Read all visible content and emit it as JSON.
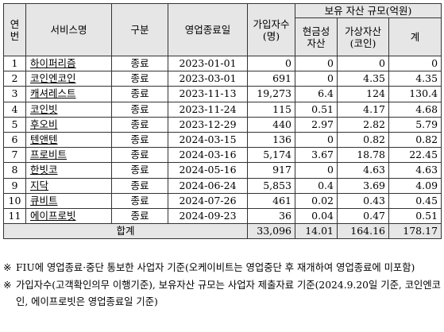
{
  "table": {
    "headers": {
      "no": "연\n번",
      "service": "서비스명",
      "type": "구분",
      "end_date": "영업종료일",
      "members": "가입자수\n(명)",
      "assets_group": "보유 자산 규모(억원)",
      "cash": "현금성\n자산",
      "coin": "가상자산\n(코인)",
      "sum": "계"
    },
    "rows": [
      {
        "no": "1",
        "service": "하이퍼리즘",
        "type": "종료",
        "date": "2023-01-01",
        "members": "0",
        "cash": "0",
        "coin": "0",
        "sum": "0"
      },
      {
        "no": "2",
        "service": "코인엔코인",
        "type": "종료",
        "date": "2023-03-01",
        "members": "691",
        "cash": "0",
        "coin": "4.35",
        "sum": "4.35"
      },
      {
        "no": "3",
        "service": "캐셔레스트",
        "type": "종료",
        "date": "2023-11-13",
        "members": "19,273",
        "cash": "6.4",
        "coin": "124",
        "sum": "130.4"
      },
      {
        "no": "4",
        "service": "코인빗",
        "type": "종료",
        "date": "2023-11-24",
        "members": "115",
        "cash": "0.51",
        "coin": "4.17",
        "sum": "4.68"
      },
      {
        "no": "5",
        "service": "후오비",
        "type": "종료",
        "date": "2023-12-29",
        "members": "440",
        "cash": "2.97",
        "coin": "2.82",
        "sum": "5.79"
      },
      {
        "no": "6",
        "service": "텐앤텐",
        "type": "종료",
        "date": "2024-03-15",
        "members": "136",
        "cash": "0",
        "coin": "0.82",
        "sum": "0.82"
      },
      {
        "no": "7",
        "service": "프로비트",
        "type": "종료",
        "date": "2024-03-16",
        "members": "5,174",
        "cash": "3.67",
        "coin": "18.78",
        "sum": "22.45"
      },
      {
        "no": "8",
        "service": "한빗코",
        "type": "종료",
        "date": "2024-05-16",
        "members": "917",
        "cash": "0",
        "coin": "4.63",
        "sum": "4.63"
      },
      {
        "no": "9",
        "service": "지닥",
        "type": "종료",
        "date": "2024-06-24",
        "members": "5,853",
        "cash": "0.4",
        "coin": "3.69",
        "sum": "4.09"
      },
      {
        "no": "10",
        "service": "큐비트",
        "type": "종료",
        "date": "2024-07-26",
        "members": "461",
        "cash": "0.02",
        "coin": "0.43",
        "sum": "0.45"
      },
      {
        "no": "11",
        "service": "에이프로빗",
        "type": "종료",
        "date": "2024-09-23",
        "members": "36",
        "cash": "0.04",
        "coin": "0.47",
        "sum": "0.51"
      }
    ],
    "total": {
      "label": "합계",
      "members": "33,096",
      "cash": "14.01",
      "coin": "164.16",
      "sum": "178.17"
    }
  },
  "notes": [
    {
      "mark": "※",
      "text": "FIU에 영업종료·중단 통보한 사업자 기준(오케이비트는 영업중단 후 재개하여 영업종료에 미포함)"
    },
    {
      "mark": "※",
      "text": "가입자수(고객확인의무 이행기준), 보유자산 규모는 사업자 제출자료 기준(2024.9.20일 기준, 코인엔코인, 에이프로빗은 영업종료일 기준)"
    }
  ]
}
